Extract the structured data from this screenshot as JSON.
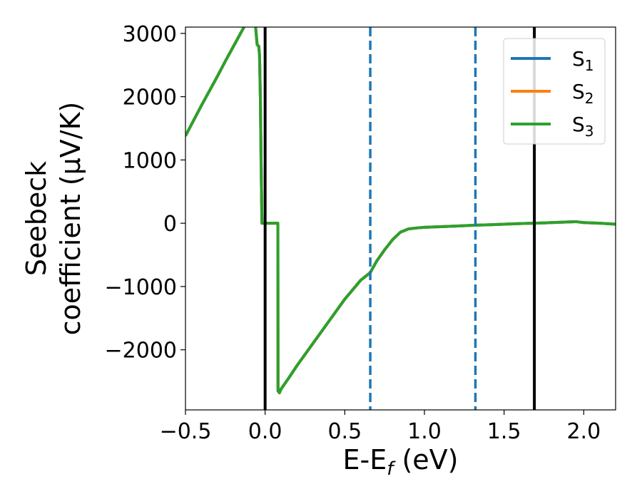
{
  "chart_data": {
    "type": "line",
    "xlabel": "E-E",
    "xlabel_sub": "f",
    "xlabel_unit": " (eV)",
    "ylabel_line1": "Seebeck",
    "ylabel_line2": "coefficient  (μV/K)",
    "xlim": [
      -0.5,
      2.2
    ],
    "ylim": [
      -2950,
      3100
    ],
    "xticks": [
      -0.5,
      0.0,
      0.5,
      1.0,
      1.5,
      2.0
    ],
    "xtick_labels": [
      "−0.5",
      "0.0",
      "0.5",
      "1.0",
      "1.5",
      "2.0"
    ],
    "yticks": [
      -2000,
      -1000,
      0,
      1000,
      2000,
      3000
    ],
    "ytick_labels": [
      "−2000",
      "−1000",
      "0",
      "1000",
      "2000",
      "3000"
    ],
    "legend_position": "top-right",
    "series": [
      {
        "name": "S",
        "sub": "1",
        "color": "#1f77b4"
      },
      {
        "name": "S",
        "sub": "2",
        "color": "#ff7f0e"
      },
      {
        "name": "S",
        "sub": "3",
        "color": "#2ca02c"
      }
    ],
    "curve": {
      "x": [
        -0.5,
        -0.45,
        -0.4,
        -0.35,
        -0.3,
        -0.25,
        -0.2,
        -0.15,
        -0.1,
        -0.07,
        -0.05,
        -0.04,
        -0.035,
        -0.03,
        -0.025,
        -0.02,
        0.0,
        0.05,
        0.08,
        0.081,
        0.09,
        0.1,
        0.15,
        0.2,
        0.3,
        0.4,
        0.5,
        0.6,
        0.66,
        0.7,
        0.75,
        0.8,
        0.85,
        0.9,
        0.95,
        1.0,
        1.1,
        1.2,
        1.32,
        1.4,
        1.5,
        1.6,
        1.69,
        1.8,
        1.9,
        1.95,
        2.0,
        2.1,
        2.2
      ],
      "y": [
        1380,
        1620,
        1860,
        2090,
        2320,
        2560,
        2790,
        3020,
        3250,
        3390,
        2820,
        2800,
        2650,
        2000,
        900,
        0,
        0,
        0,
        0,
        -2650,
        -2680,
        -2620,
        -2440,
        -2250,
        -1900,
        -1550,
        -1200,
        -900,
        -780,
        -600,
        -420,
        -260,
        -140,
        -90,
        -75,
        -65,
        -55,
        -45,
        -30,
        -25,
        -15,
        -5,
        0,
        10,
        20,
        25,
        10,
        0,
        -15
      ]
    },
    "vlines": [
      {
        "x": 0.0,
        "style": "solid",
        "color": "#000000"
      },
      {
        "x": 1.69,
        "style": "solid",
        "color": "#000000"
      },
      {
        "x": 0.66,
        "style": "dashed",
        "color": "#1f77b4"
      },
      {
        "x": 1.32,
        "style": "dashed",
        "color": "#1f77b4"
      }
    ]
  }
}
